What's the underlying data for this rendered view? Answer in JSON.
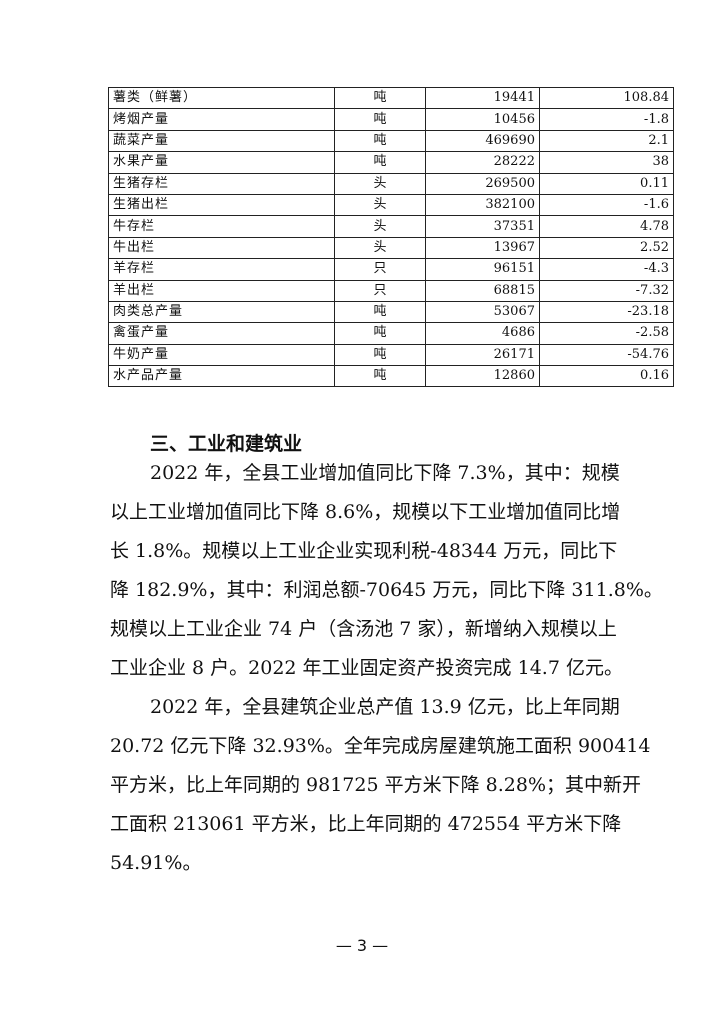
{
  "table": {
    "rows": [
      {
        "name": "薯类（鲜薯）",
        "unit": "吨",
        "value": "19441",
        "change": "108.84"
      },
      {
        "name": "烤烟产量",
        "unit": "吨",
        "value": "10456",
        "change": "-1.8"
      },
      {
        "name": "蔬菜产量",
        "unit": "吨",
        "value": "469690",
        "change": "2.1"
      },
      {
        "name": "水果产量",
        "unit": "吨",
        "value": "28222",
        "change": "38"
      },
      {
        "name": "生猪存栏",
        "unit": "头",
        "value": "269500",
        "change": "0.11"
      },
      {
        "name": "生猪出栏",
        "unit": "头",
        "value": "382100",
        "change": "-1.6"
      },
      {
        "name": "牛存栏",
        "unit": "头",
        "value": "37351",
        "change": "4.78"
      },
      {
        "name": "牛出栏",
        "unit": "头",
        "value": "13967",
        "change": "2.52"
      },
      {
        "name": "羊存栏",
        "unit": "只",
        "value": "96151",
        "change": "-4.3"
      },
      {
        "name": "羊出栏",
        "unit": "只",
        "value": "68815",
        "change": "-7.32"
      },
      {
        "name": "肉类总产量",
        "unit": "吨",
        "value": "53067",
        "change": "-23.18"
      },
      {
        "name": "禽蛋产量",
        "unit": "吨",
        "value": "4686",
        "change": "-2.58"
      },
      {
        "name": "牛奶产量",
        "unit": "吨",
        "value": "26171",
        "change": "-54.76"
      },
      {
        "name": "水产品产量",
        "unit": "吨",
        "value": "12860",
        "change": "0.16"
      }
    ]
  },
  "section": {
    "heading": "三、工业和建筑业",
    "paragraphs": [
      {
        "lines": [
          "2022 年，全县工业增加值同比下降 7.3%，其中：规模",
          "以上工业增加值同比下降 8.6%，规模以下工业增加值同比增",
          "长 1.8%。规模以上工业企业实现利税-48344 万元，同比下",
          "降 182.9%，其中：利润总额-70645 万元，同比下降 311.8%。",
          "规模以上工业企业 74 户（含汤池 7 家），新增纳入规模以上",
          "工业企业 8 户。2022 年工业固定资产投资完成 14.7 亿元。"
        ]
      },
      {
        "lines": [
          "2022 年，全县建筑企业总产值 13.9 亿元，比上年同期",
          "20.72 亿元下降 32.93%。全年完成房屋建筑施工面积 900414",
          "平方米，比上年同期的 981725 平方米下降 8.28%；其中新开",
          "工面积 213061 平方米，比上年同期的 472554 平方米下降",
          "54.91%。"
        ]
      }
    ]
  },
  "page_number": "— 3 —"
}
